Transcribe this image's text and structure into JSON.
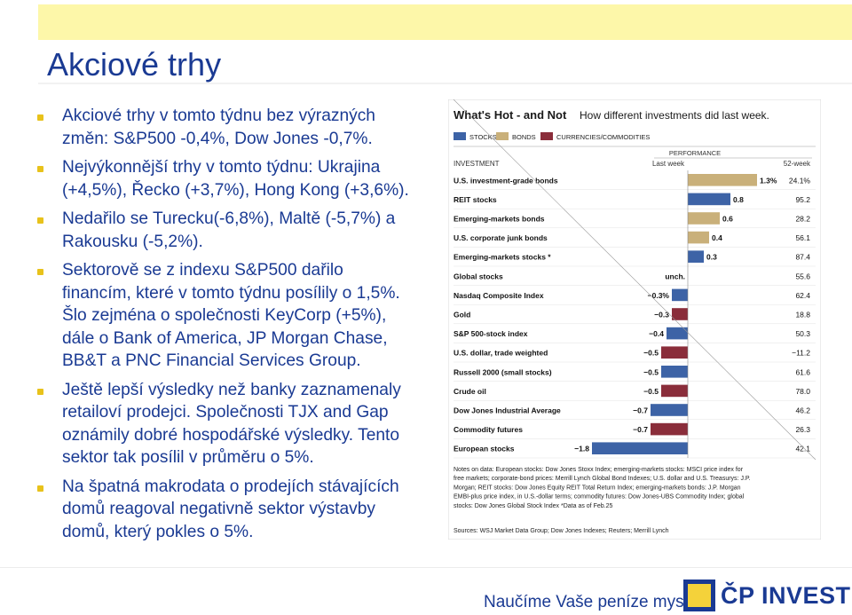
{
  "slide": {
    "title": "Akciové trhy",
    "bullets": [
      "Akciové trhy v tomto týdnu bez výrazných\nzměn: S&P500 -0,4%, Dow Jones -0,7%.",
      "Nejvýkonnější trhy v tomto týdnu: Ukrajina\n(+4,5%), Řecko (+3,7%), Hong Kong (+3,6%).",
      "Nedařilo se Turecku(-6,8%), Maltě (-5,7%) a\nRakousku (-5,2%).",
      "Sektorově se z indexu S&P500 dařilo\nfinancím, které v tomto týdnu posílily o 1,5%.\nŠlo zejména o společnosti KeyCorp (+5%),\ndále o Bank of America, JP Morgan Chase,\nBB&T a PNC Financial Services Group.",
      "Ještě lepší výsledky než banky zaznamenaly\nretailoví prodejci. Společnosti TJX and Gap\noznámily dobré hospodářské výsledky. Tento\nsektor tak posílil v průměru o 5%.",
      "Na špatná makrodata o prodejích stávajících\ndomů reagoval negativně sektor výstavby\ndomů, který pokles o 5%."
    ]
  },
  "footer": {
    "slogan": "Naučíme Vaše peníze myslet",
    "brand": "ČP INVEST"
  },
  "colors": {
    "title": "#1a3a93",
    "bullet_marker": "#e8c21b",
    "stocks": "#3d63a6",
    "bonds": "#c9b07a",
    "currencies": "#8a2d3a"
  },
  "chart_data": {
    "type": "bar",
    "title": "What's Hot - and Not",
    "subtitle": "How different investments did last week.",
    "legend": [
      "STOCKS",
      "BONDS",
      "CURRENCIES/COMMODITIES"
    ],
    "header_group": "PERFORMANCE",
    "col_investment": "INVESTMENT",
    "col_last_week": "Last week",
    "col_52_week": "52-week",
    "categories": [
      "U.S. investment-grade bonds",
      "REIT stocks",
      "Emerging-markets bonds",
      "U.S. corporate junk bonds",
      "Emerging-markets stocks *",
      "Global stocks",
      "Nasdaq Composite Index",
      "Gold",
      "S&P 500-stock index",
      "U.S. dollar, trade weighted",
      "Russell 2000 (small stocks)",
      "Crude oil",
      "Dow Jones Industrial Average",
      "Commodity futures",
      "European stocks"
    ],
    "series": [
      {
        "name": "Last week",
        "values": [
          1.3,
          0.8,
          0.6,
          0.4,
          0.3,
          0,
          -0.3,
          -0.3,
          -0.4,
          -0.5,
          -0.5,
          -0.5,
          -0.7,
          -0.7,
          -1.8
        ]
      },
      {
        "name": "52-week",
        "values": [
          24.1,
          95.2,
          28.2,
          56.1,
          87.4,
          55.6,
          62.4,
          18.8,
          50.3,
          -11.2,
          61.6,
          78.0,
          46.2,
          26.3,
          42.1
        ]
      }
    ],
    "last_week_labels": [
      "1.3%",
      "0.8",
      "0.6",
      "0.4",
      "0.3",
      "unch.",
      "−0.3%",
      "−0.3",
      "−0.4",
      "−0.5",
      "−0.5",
      "−0.5",
      "−0.7",
      "−0.7",
      "−1.8"
    ],
    "week52_labels": [
      "24.1%",
      "95.2",
      "28.2",
      "56.1",
      "87.4",
      "55.6",
      "62.4",
      "18.8",
      "50.3",
      "−11.2",
      "61.6",
      "78.0",
      "46.2",
      "26.3",
      "42.1"
    ],
    "kinds": [
      "bonds",
      "stocks",
      "bonds",
      "bonds",
      "stocks",
      "stocks",
      "stocks",
      "currencies",
      "stocks",
      "currencies",
      "stocks",
      "currencies",
      "stocks",
      "currencies",
      "stocks"
    ],
    "notes": [
      "Notes on data: European stocks: Dow Jones Stoxx Index; emerging-markets stocks: MSCI price index for",
      "free markets; corporate-bond prices: Merrill Lynch Global Bond Indexes; U.S. dollar and U.S. Treasurys: J.P.",
      "Morgan; REIT stocks: Dow Jones Equity REIT Total Return Index; emerging-markets bonds: J.P. Morgan",
      "EMBI-plus price index, in U.S.-dollar terms; commodity futures: Dow Jones-UBS Commodity Index; global",
      "stocks: Dow Jones Global Stock Index *Data as of Feb.25"
    ],
    "sources": "Sources: WSJ Market Data Group; Dow Jones Indexes; Reuters; Merrill Lynch"
  }
}
